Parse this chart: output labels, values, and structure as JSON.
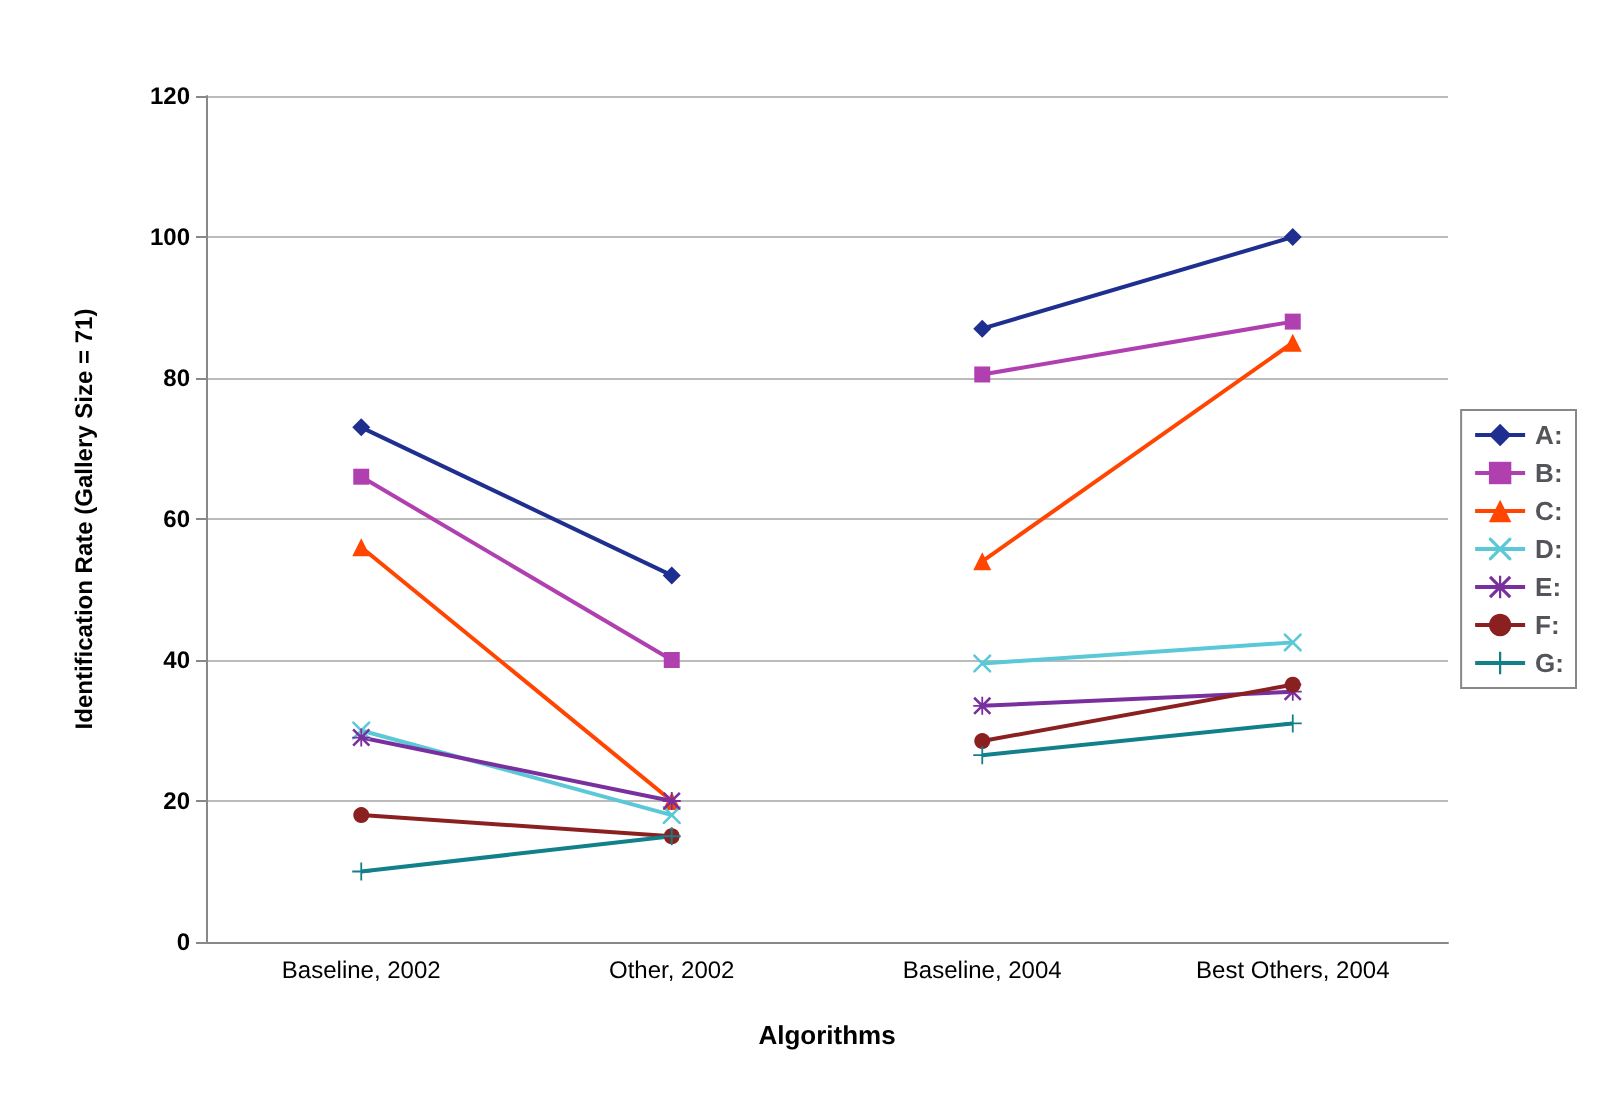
{
  "chart_data": {
    "type": "line",
    "xlabel": "Algorithms",
    "ylabel": "Identification Rate (Gallery Size = 71)",
    "categories": [
      "Baseline, 2002",
      "Other, 2002",
      "Baseline, 2004",
      "Best Others, 2004"
    ],
    "ylim": [
      0,
      120
    ],
    "yticks": [
      0,
      20,
      40,
      60,
      80,
      100,
      120
    ],
    "grid": "y",
    "legend": "right",
    "series": [
      {
        "name": "A:",
        "color": "#1f2f8f",
        "marker": "diamond",
        "x": [
          "Baseline, 2002",
          "Other, 2002"
        ],
        "values": [
          73,
          52
        ]
      },
      {
        "name": "B:",
        "color": "#b040b0",
        "marker": "square",
        "x": [
          "Baseline, 2002",
          "Other, 2002"
        ],
        "values": [
          66,
          40
        ]
      },
      {
        "name": "C:",
        "color": "#ff4500",
        "marker": "triangle",
        "x": [
          "Baseline, 2002",
          "Other, 2002"
        ],
        "values": [
          56,
          20
        ]
      },
      {
        "name": "D:",
        "color": "#5bc8d8",
        "marker": "cross",
        "x": [
          "Baseline, 2002",
          "Other, 2002"
        ],
        "values": [
          30,
          18
        ]
      },
      {
        "name": "E:",
        "color": "#7a2f9f",
        "marker": "star",
        "x": [
          "Baseline, 2002",
          "Other, 2002"
        ],
        "values": [
          29,
          20
        ]
      },
      {
        "name": "F:",
        "color": "#8b2020",
        "marker": "circle",
        "x": [
          "Baseline, 2002",
          "Other, 2002"
        ],
        "values": [
          18,
          15
        ]
      },
      {
        "name": "G:",
        "color": "#12808a",
        "marker": "plus",
        "x": [
          "Baseline, 2002",
          "Other, 2002"
        ],
        "values": [
          10,
          15
        ]
      },
      {
        "color": "#1f2f8f",
        "marker": "diamond",
        "x": [
          "Baseline, 2004",
          "Best Others, 2004"
        ],
        "values": [
          87,
          100
        ]
      },
      {
        "color": "#b040b0",
        "marker": "square",
        "x": [
          "Baseline, 2004",
          "Best Others, 2004"
        ],
        "values": [
          80.5,
          88
        ]
      },
      {
        "color": "#ff4500",
        "marker": "triangle",
        "x": [
          "Baseline, 2004",
          "Best Others, 2004"
        ],
        "values": [
          54,
          85
        ]
      },
      {
        "color": "#5bc8d8",
        "marker": "cross",
        "x": [
          "Baseline, 2004",
          "Best Others, 2004"
        ],
        "values": [
          39.5,
          42.5
        ]
      },
      {
        "color": "#7a2f9f",
        "marker": "star",
        "x": [
          "Baseline, 2004",
          "Best Others, 2004"
        ],
        "values": [
          33.5,
          35.5
        ]
      },
      {
        "color": "#8b2020",
        "marker": "circle",
        "x": [
          "Baseline, 2004",
          "Best Others, 2004"
        ],
        "values": [
          28.5,
          36.5
        ]
      },
      {
        "color": "#12808a",
        "marker": "plus",
        "x": [
          "Baseline, 2004",
          "Best Others, 2004"
        ],
        "values": [
          26.5,
          31
        ]
      }
    ]
  }
}
